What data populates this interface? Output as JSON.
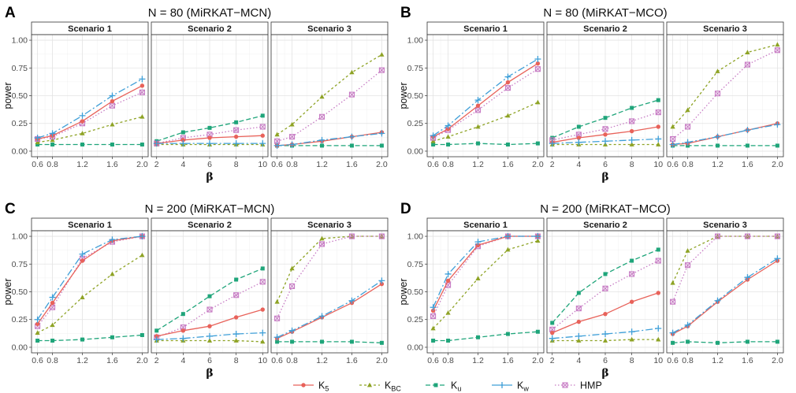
{
  "figure": {
    "xlabel": "β",
    "ylabel": "power",
    "yticks": [
      "0.00",
      "0.25",
      "0.50",
      "0.75",
      "1.00"
    ],
    "legend": [
      {
        "key": "K5",
        "base": "K",
        "sub": "5",
        "color": "#E8625A",
        "dash": "",
        "marker": "circle"
      },
      {
        "key": "KBC",
        "base": "K",
        "sub": "BC",
        "color": "#8EA325",
        "dash": "3,3",
        "marker": "triangle"
      },
      {
        "key": "Ku",
        "base": "K",
        "sub": "u",
        "color": "#1FA57A",
        "dash": "6,3",
        "marker": "square"
      },
      {
        "key": "Kw",
        "base": "K",
        "sub": "w",
        "color": "#3F9FD8",
        "dash": "9,3,2,3",
        "marker": "plus"
      },
      {
        "key": "HMP",
        "base": "HMP",
        "sub": "",
        "color": "#C77BC4",
        "dash": "1.5,2.5",
        "marker": "boxx"
      }
    ]
  },
  "chart_data": [
    {
      "label": "A",
      "title": "N = 80 (MiRKAT−MCN)",
      "type": "line",
      "ylim": [
        0,
        1
      ],
      "facets": [
        {
          "title": "Scenario 1",
          "x": [
            0.6,
            0.8,
            1.2,
            1.6,
            2.0
          ],
          "xticks": [
            "0.6",
            "0.8",
            "1.2",
            "1.6",
            "2.0"
          ],
          "xlim": [
            0.52,
            2.08
          ],
          "series": {
            "K5": [
              0.11,
              0.14,
              0.27,
              0.45,
              0.59
            ],
            "KBC": [
              0.08,
              0.1,
              0.16,
              0.24,
              0.31
            ],
            "Ku": [
              0.06,
              0.06,
              0.06,
              0.06,
              0.06
            ],
            "Kw": [
              0.12,
              0.16,
              0.32,
              0.5,
              0.65
            ],
            "HMP": [
              0.11,
              0.13,
              0.25,
              0.41,
              0.53
            ]
          }
        },
        {
          "title": "Scenario 2",
          "x": [
            2,
            4,
            6,
            8,
            10
          ],
          "xticks": [
            "2",
            "4",
            "6",
            "8",
            "10"
          ],
          "xlim": [
            1.6,
            10.4
          ],
          "series": {
            "K5": [
              0.07,
              0.1,
              0.12,
              0.13,
              0.14
            ],
            "KBC": [
              0.06,
              0.06,
              0.06,
              0.06,
              0.06
            ],
            "Ku": [
              0.09,
              0.17,
              0.21,
              0.26,
              0.32
            ],
            "Kw": [
              0.07,
              0.07,
              0.07,
              0.07,
              0.07
            ],
            "HMP": [
              0.07,
              0.12,
              0.15,
              0.19,
              0.22
            ]
          }
        },
        {
          "title": "Scenario 3",
          "x": [
            0.6,
            0.8,
            1.2,
            1.6,
            2.0
          ],
          "xticks": [
            "0.6",
            "0.8",
            "1.2",
            "1.6",
            "2.0"
          ],
          "xlim": [
            0.52,
            2.08
          ],
          "series": {
            "K5": [
              0.05,
              0.06,
              0.09,
              0.13,
              0.17
            ],
            "KBC": [
              0.15,
              0.24,
              0.49,
              0.71,
              0.87
            ],
            "Ku": [
              0.05,
              0.05,
              0.05,
              0.05,
              0.05
            ],
            "Kw": [
              0.05,
              0.06,
              0.1,
              0.13,
              0.16
            ],
            "HMP": [
              0.09,
              0.13,
              0.31,
              0.51,
              0.73
            ]
          }
        }
      ]
    },
    {
      "label": "B",
      "title": "N = 80 (MiRKAT−MCO)",
      "type": "line",
      "ylim": [
        0,
        1
      ],
      "facets": [
        {
          "title": "Scenario 1",
          "x": [
            0.6,
            0.8,
            1.2,
            1.6,
            2.0
          ],
          "xticks": [
            "0.6",
            "0.8",
            "1.2",
            "1.6",
            "2.0"
          ],
          "xlim": [
            0.52,
            2.08
          ],
          "series": {
            "K5": [
              0.13,
              0.2,
              0.41,
              0.62,
              0.79
            ],
            "KBC": [
              0.09,
              0.13,
              0.22,
              0.32,
              0.44
            ],
            "Ku": [
              0.06,
              0.06,
              0.07,
              0.06,
              0.07
            ],
            "Kw": [
              0.14,
              0.23,
              0.46,
              0.67,
              0.83
            ],
            "HMP": [
              0.12,
              0.19,
              0.37,
              0.57,
              0.74
            ]
          }
        },
        {
          "title": "Scenario 2",
          "x": [
            2,
            4,
            6,
            8,
            10
          ],
          "xticks": [
            "2",
            "4",
            "6",
            "8",
            "10"
          ],
          "xlim": [
            1.6,
            10.4
          ],
          "series": {
            "K5": [
              0.08,
              0.12,
              0.15,
              0.18,
              0.22
            ],
            "KBC": [
              0.06,
              0.06,
              0.06,
              0.06,
              0.06
            ],
            "Ku": [
              0.12,
              0.22,
              0.3,
              0.39,
              0.46
            ],
            "Kw": [
              0.07,
              0.08,
              0.09,
              0.1,
              0.11
            ],
            "HMP": [
              0.1,
              0.15,
              0.2,
              0.27,
              0.35
            ]
          }
        },
        {
          "title": "Scenario 3",
          "x": [
            0.6,
            0.8,
            1.2,
            1.6,
            2.0
          ],
          "xticks": [
            "0.6",
            "0.8",
            "1.2",
            "1.6",
            "2.0"
          ],
          "xlim": [
            0.52,
            2.08
          ],
          "series": {
            "K5": [
              0.06,
              0.07,
              0.13,
              0.19,
              0.25
            ],
            "KBC": [
              0.22,
              0.37,
              0.72,
              0.89,
              0.96
            ],
            "Ku": [
              0.05,
              0.05,
              0.05,
              0.05,
              0.05
            ],
            "Kw": [
              0.06,
              0.08,
              0.13,
              0.19,
              0.24
            ],
            "HMP": [
              0.11,
              0.22,
              0.52,
              0.78,
              0.91
            ]
          }
        }
      ]
    },
    {
      "label": "C",
      "title": "N = 200 (MiRKAT−MCN)",
      "type": "line",
      "ylim": [
        0,
        1
      ],
      "facets": [
        {
          "title": "Scenario 1",
          "x": [
            0.6,
            0.8,
            1.2,
            1.6,
            2.0
          ],
          "xticks": [
            "0.6",
            "0.8",
            "1.2",
            "1.6",
            "2.0"
          ],
          "xlim": [
            0.52,
            2.08
          ],
          "series": {
            "K5": [
              0.21,
              0.4,
              0.78,
              0.96,
              1.0
            ],
            "KBC": [
              0.13,
              0.2,
              0.45,
              0.66,
              0.83
            ],
            "Ku": [
              0.06,
              0.06,
              0.07,
              0.09,
              0.11
            ],
            "Kw": [
              0.25,
              0.45,
              0.84,
              0.97,
              1.0
            ],
            "HMP": [
              0.19,
              0.36,
              0.8,
              0.95,
              1.0
            ]
          }
        },
        {
          "title": "Scenario 2",
          "x": [
            2,
            4,
            6,
            8,
            10
          ],
          "xticks": [
            "2",
            "4",
            "6",
            "8",
            "10"
          ],
          "xlim": [
            1.6,
            10.4
          ],
          "series": {
            "K5": [
              0.1,
              0.15,
              0.19,
              0.27,
              0.34
            ],
            "KBC": [
              0.06,
              0.06,
              0.06,
              0.06,
              0.05
            ],
            "Ku": [
              0.15,
              0.3,
              0.46,
              0.61,
              0.71
            ],
            "Kw": [
              0.07,
              0.08,
              0.1,
              0.12,
              0.13
            ],
            "HMP": [
              0.09,
              0.18,
              0.34,
              0.47,
              0.59
            ]
          }
        },
        {
          "title": "Scenario 3",
          "x": [
            0.6,
            0.8,
            1.2,
            1.6,
            2.0
          ],
          "xticks": [
            "0.6",
            "0.8",
            "1.2",
            "1.6",
            "2.0"
          ],
          "xlim": [
            0.52,
            2.08
          ],
          "series": {
            "K5": [
              0.08,
              0.14,
              0.27,
              0.4,
              0.57
            ],
            "KBC": [
              0.41,
              0.71,
              0.98,
              1.0,
              1.0
            ],
            "Ku": [
              0.05,
              0.05,
              0.05,
              0.05,
              0.04
            ],
            "Kw": [
              0.09,
              0.15,
              0.28,
              0.42,
              0.6
            ],
            "HMP": [
              0.26,
              0.55,
              0.93,
              1.0,
              1.0
            ]
          }
        }
      ]
    },
    {
      "label": "D",
      "title": "N = 200 (MiRKAT−MCO)",
      "type": "line",
      "ylim": [
        0,
        1
      ],
      "facets": [
        {
          "title": "Scenario 1",
          "x": [
            0.6,
            0.8,
            1.2,
            1.6,
            2.0
          ],
          "xticks": [
            "0.6",
            "0.8",
            "1.2",
            "1.6",
            "2.0"
          ],
          "xlim": [
            0.52,
            2.08
          ],
          "series": {
            "K5": [
              0.33,
              0.6,
              0.92,
              1.0,
              1.0
            ],
            "KBC": [
              0.17,
              0.31,
              0.62,
              0.88,
              0.96
            ],
            "Ku": [
              0.06,
              0.06,
              0.09,
              0.12,
              0.14
            ],
            "Kw": [
              0.36,
              0.66,
              0.95,
              1.0,
              1.0
            ],
            "HMP": [
              0.28,
              0.56,
              0.91,
              1.0,
              1.0
            ]
          }
        },
        {
          "title": "Scenario 2",
          "x": [
            2,
            4,
            6,
            8,
            10
          ],
          "xticks": [
            "2",
            "4",
            "6",
            "8",
            "10"
          ],
          "xlim": [
            1.6,
            10.4
          ],
          "series": {
            "K5": [
              0.13,
              0.23,
              0.3,
              0.41,
              0.49
            ],
            "KBC": [
              0.06,
              0.06,
              0.06,
              0.07,
              0.07
            ],
            "Ku": [
              0.22,
              0.49,
              0.66,
              0.78,
              0.88
            ],
            "Kw": [
              0.08,
              0.1,
              0.12,
              0.14,
              0.17
            ],
            "HMP": [
              0.16,
              0.35,
              0.53,
              0.66,
              0.78
            ]
          }
        },
        {
          "title": "Scenario 3",
          "x": [
            0.6,
            0.8,
            1.2,
            1.6,
            2.0
          ],
          "xticks": [
            "0.6",
            "0.8",
            "1.2",
            "1.6",
            "2.0"
          ],
          "xlim": [
            0.52,
            2.08
          ],
          "series": {
            "K5": [
              0.12,
              0.19,
              0.41,
              0.61,
              0.78
            ],
            "KBC": [
              0.58,
              0.87,
              1.0,
              1.0,
              1.0
            ],
            "Ku": [
              0.04,
              0.05,
              0.04,
              0.05,
              0.05
            ],
            "Kw": [
              0.13,
              0.2,
              0.42,
              0.63,
              0.8
            ],
            "HMP": [
              0.41,
              0.74,
              1.0,
              1.0,
              1.0
            ]
          }
        }
      ]
    }
  ]
}
